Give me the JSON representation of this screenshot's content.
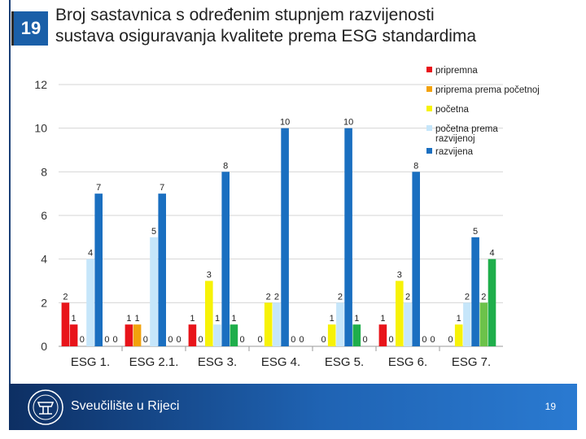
{
  "slide": {
    "number": "19",
    "title_line1": "Broj sastavnica s određenim stupnjem razvijenosti",
    "title_line2": "sustava osiguravanja kvalitete prema ESG standardima"
  },
  "footer": {
    "university": "Sveučilište u Rijeci",
    "page_number": "19",
    "logo_icon": "university-seal-icon"
  },
  "colors": {
    "pripremna": "#e8141a",
    "priprema_prema_pocetnoj": "#f2a20c",
    "pocetna": "#f7f207",
    "pocetna_prema_razvijenoj": "#c6e6fa",
    "razvijena": "#1a6fc0",
    "extra_green": "#1fae4b"
  },
  "chart_data": {
    "type": "bar",
    "title": "",
    "xlabel": "",
    "ylabel": "",
    "ylim": [
      0,
      12
    ],
    "yticks": [
      "0",
      "2",
      "4",
      "6",
      "8",
      "10",
      "12"
    ],
    "grid": true,
    "legend_position": "top-right",
    "categories": [
      "ESG 1.",
      "ESG 2.1.",
      "ESG 3.",
      "ESG 4.",
      "ESG 5.",
      "ESG 6.",
      "ESG 7."
    ],
    "bars": [
      [
        {
          "value": 2,
          "label": "2",
          "color": "#e8141a"
        },
        {
          "value": 1,
          "label": "1",
          "color": "#e8141a"
        },
        {
          "value": 0,
          "label": "0",
          "color": "#f2a20c"
        },
        {
          "value": 4,
          "label": "4",
          "color": "#c6e6fa"
        },
        {
          "value": 7,
          "label": "7",
          "color": "#1a6fc0"
        },
        {
          "value": 0,
          "label": "0",
          "color": "#1fae4b"
        },
        {
          "value": 0,
          "label": "0",
          "color": "#1fae4b"
        }
      ],
      [
        {
          "value": 1,
          "label": "1",
          "color": "#e8141a"
        },
        {
          "value": 1,
          "label": "1",
          "color": "#f2a20c"
        },
        {
          "value": 0,
          "label": "0",
          "color": "#f7f207"
        },
        {
          "value": 5,
          "label": "5",
          "color": "#c6e6fa"
        },
        {
          "value": 7,
          "label": "7",
          "color": "#1a6fc0"
        },
        {
          "value": 0,
          "label": "0",
          "color": "#1fae4b"
        },
        {
          "value": 0,
          "label": "0",
          "color": "#1fae4b"
        }
      ],
      [
        {
          "value": 1,
          "label": "1",
          "color": "#e8141a"
        },
        {
          "value": 0,
          "label": "0",
          "color": "#f2a20c"
        },
        {
          "value": 3,
          "label": "3",
          "color": "#f7f207"
        },
        {
          "value": 1,
          "label": "1",
          "color": "#c6e6fa"
        },
        {
          "value": 8,
          "label": "8",
          "color": "#1a6fc0"
        },
        {
          "value": 1,
          "label": "1",
          "color": "#1fae4b"
        },
        {
          "value": 0,
          "label": "0",
          "color": "#1fae4b"
        }
      ],
      [
        {
          "value": 0,
          "label": "0",
          "color": "#e8141a"
        },
        {
          "value": 2,
          "label": "2",
          "color": "#f7f207"
        },
        {
          "value": 2,
          "label": "2",
          "color": "#c6e6fa"
        },
        {
          "value": 10,
          "label": "10",
          "color": "#1a6fc0"
        },
        {
          "value": 0,
          "label": "0",
          "color": "#1fae4b"
        },
        {
          "value": 0,
          "label": "0",
          "color": "#1fae4b"
        }
      ],
      [
        {
          "value": 0,
          "label": "0",
          "color": "#e8141a"
        },
        {
          "value": 1,
          "label": "1",
          "color": "#f7f207"
        },
        {
          "value": 2,
          "label": "2",
          "color": "#c6e6fa"
        },
        {
          "value": 10,
          "label": "10",
          "color": "#1a6fc0"
        },
        {
          "value": 1,
          "label": "1",
          "color": "#1fae4b"
        },
        {
          "value": 0,
          "label": "0",
          "color": "#1fae4b"
        }
      ],
      [
        {
          "value": 1,
          "label": "1",
          "color": "#e8141a"
        },
        {
          "value": 0,
          "label": "0",
          "color": "#f2a20c"
        },
        {
          "value": 3,
          "label": "3",
          "color": "#f7f207"
        },
        {
          "value": 2,
          "label": "2",
          "color": "#c6e6fa"
        },
        {
          "value": 8,
          "label": "8",
          "color": "#1a6fc0"
        },
        {
          "value": 0,
          "label": "0",
          "color": "#1fae4b"
        },
        {
          "value": 0,
          "label": "0",
          "color": "#1fae4b"
        }
      ],
      [
        {
          "value": 0,
          "label": "0",
          "color": "#e8141a"
        },
        {
          "value": 1,
          "label": "1",
          "color": "#f7f207"
        },
        {
          "value": 2,
          "label": "2",
          "color": "#c6e6fa"
        },
        {
          "value": 5,
          "label": "5",
          "color": "#1a6fc0"
        },
        {
          "value": 2,
          "label": "2",
          "color": "#6cc24a"
        },
        {
          "value": 4,
          "label": "4",
          "color": "#1fae4b"
        }
      ]
    ],
    "legend": [
      {
        "lines": [
          "pripremna"
        ],
        "color": "#e8141a"
      },
      {
        "lines": [
          "priprema prema početnoj"
        ],
        "color": "#f2a20c"
      },
      {
        "lines": [
          "početna"
        ],
        "color": "#f7f207"
      },
      {
        "lines": [
          "početna prema",
          "razvijenoj"
        ],
        "color": "#c6e6fa"
      },
      {
        "lines": [
          "razvijena"
        ],
        "color": "#1a6fc0"
      }
    ]
  }
}
